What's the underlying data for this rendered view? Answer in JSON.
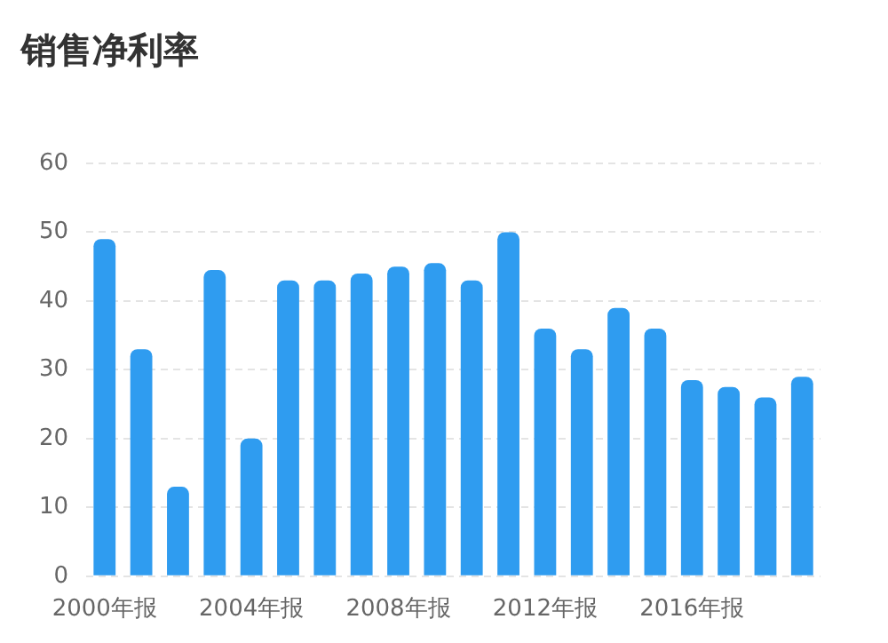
{
  "chart_data": {
    "type": "bar",
    "title": "销售净利率",
    "categories": [
      "2000年报",
      null,
      null,
      null,
      "2004年报",
      null,
      null,
      null,
      "2008年报",
      null,
      null,
      null,
      "2012年报",
      null,
      null,
      null,
      "2016年报",
      null,
      null,
      null
    ],
    "values": [
      49,
      33,
      13,
      44.5,
      20,
      43,
      43,
      44,
      45,
      45.5,
      43,
      50,
      36,
      33,
      39,
      36,
      28.5,
      27.5,
      26,
      29
    ],
    "color": "#2f9cf0",
    "ylim": [
      0,
      60
    ],
    "yticks": [
      0,
      10,
      20,
      30,
      40,
      50,
      60
    ],
    "grid": "y"
  }
}
